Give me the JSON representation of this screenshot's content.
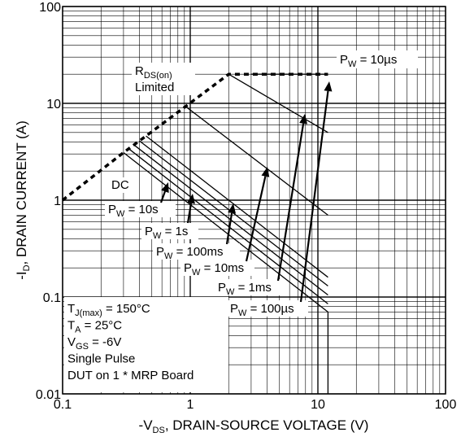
{
  "chart_data": {
    "type": "line",
    "xlabel": {
      "prefix": "-V",
      "sub": "DS",
      "rest": ", DRAIN-SOURCE VOLTAGE (V)"
    },
    "ylabel": {
      "prefix": "-I",
      "sub": "D",
      "rest": ", DRAIN CURRENT (A)"
    },
    "x_scale": "log",
    "y_scale": "log",
    "xlim": [
      0.1,
      100
    ],
    "ylim": [
      0.01,
      100
    ],
    "grid": true,
    "x_ticks": [
      {
        "v": 0.1,
        "label": "0.1"
      },
      {
        "v": 1,
        "label": "1"
      },
      {
        "v": 10,
        "label": "10"
      },
      {
        "v": 100,
        "label": "100"
      }
    ],
    "y_ticks": [
      {
        "v": 0.01,
        "label": "0.01"
      },
      {
        "v": 0.1,
        "label": "0.1"
      },
      {
        "v": 1,
        "label": "1"
      },
      {
        "v": 10,
        "label": "10"
      },
      {
        "v": 100,
        "label": "100"
      }
    ],
    "rds_limit": {
      "label_main": "R",
      "label_sub": "DS(on)",
      "label_line2": "Limited",
      "points": [
        [
          0.1,
          1.0
        ],
        [
          0.3,
          3.1
        ],
        [
          0.45,
          4.6
        ],
        [
          0.92,
          9.3
        ],
        [
          2.0,
          20.0
        ],
        [
          12.0,
          20.0
        ]
      ]
    },
    "series": [
      {
        "name": "DC",
        "label": "DC",
        "points": [
          [
            0.3,
            3.1
          ],
          [
            12,
            0.07
          ],
          [
            12,
            0.01
          ]
        ]
      },
      {
        "name": "PW = 10s",
        "label_pre": "P",
        "label_sub": "W",
        "label_post": " = 10s",
        "points": [
          [
            0.33,
            3.4
          ],
          [
            12,
            0.085
          ]
        ]
      },
      {
        "name": "PW = 1s",
        "label_pre": "P",
        "label_sub": "W",
        "label_post": " = 1s",
        "points": [
          [
            0.36,
            3.75
          ],
          [
            12,
            0.105
          ]
        ]
      },
      {
        "name": "PW = 100ms",
        "label_pre": "P",
        "label_sub": "W",
        "label_post": " = 100ms",
        "points": [
          [
            0.4,
            4.1
          ],
          [
            12,
            0.13
          ]
        ]
      },
      {
        "name": "PW = 10ms",
        "label_pre": "P",
        "label_sub": "W",
        "label_post": " = 10ms",
        "points": [
          [
            0.45,
            4.6
          ],
          [
            12,
            0.16
          ]
        ]
      },
      {
        "name": "PW = 1ms",
        "label_pre": "P",
        "label_sub": "W",
        "label_post": " = 1ms",
        "points": [
          [
            0.92,
            9.3
          ],
          [
            12,
            0.7
          ]
        ]
      },
      {
        "name": "PW = 100µs",
        "label_pre": "P",
        "label_sub": "W",
        "label_post": " = 100µs",
        "points": [
          [
            2.0,
            20.0
          ],
          [
            12,
            5.0
          ]
        ]
      },
      {
        "name": "PW = 10µs",
        "label_pre": "P",
        "label_sub": "W",
        "label_post": " = 10µs",
        "points": [
          [
            3.0,
            20.0
          ],
          [
            12,
            20.0
          ]
        ]
      }
    ],
    "annotations": {
      "conditions": [
        {
          "pre": "T",
          "sub": "J(max)",
          "post": " = 150°C"
        },
        {
          "pre": "T",
          "sub": "A",
          "post": " = 25°C"
        },
        {
          "pre": "V",
          "sub": "GS",
          "post": " = -6V"
        },
        {
          "pre": "Single Pulse",
          "sub": "",
          "post": ""
        },
        {
          "pre": "DUT on 1 * MRP Board",
          "sub": "",
          "post": ""
        }
      ]
    }
  }
}
